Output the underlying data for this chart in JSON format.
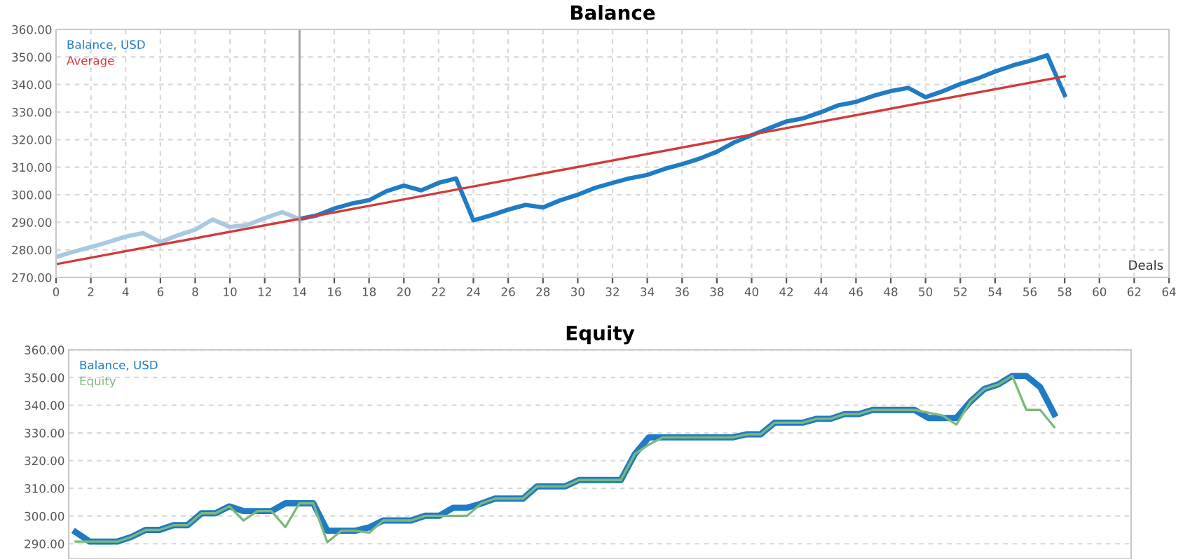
{
  "chart_data": [
    {
      "type": "line",
      "title": "Balance",
      "xlabel": "Deals",
      "xlim": [
        0,
        64
      ],
      "xticks": [
        0,
        2,
        4,
        6,
        8,
        10,
        12,
        14,
        16,
        18,
        20,
        22,
        24,
        26,
        28,
        30,
        32,
        34,
        36,
        38,
        40,
        42,
        44,
        46,
        48,
        50,
        52,
        54,
        56,
        58,
        60,
        62,
        64
      ],
      "ylim": [
        270,
        360
      ],
      "yticks": [
        {
          "value": 270,
          "label": "270.00"
        },
        {
          "value": 280,
          "label": "280.00"
        },
        {
          "value": 290,
          "label": "290.00"
        },
        {
          "value": 300,
          "label": "300.00"
        },
        {
          "value": 310,
          "label": "310.00"
        },
        {
          "value": 320,
          "label": "320.00"
        },
        {
          "value": 330,
          "label": "330.00"
        },
        {
          "value": 340,
          "label": "340.00"
        },
        {
          "value": 350,
          "label": "350.00"
        },
        {
          "value": 360,
          "label": "360.00"
        }
      ],
      "grid": true,
      "legend": "top left",
      "ref_lines": [
        {
          "axis": "x",
          "value": 14,
          "color": "#a0a0a0"
        }
      ],
      "series": [
        {
          "name": "Balance, USD",
          "color": "#1f7bc4",
          "x": [
            14,
            15,
            16,
            17,
            18,
            19,
            20,
            21,
            22,
            23,
            24,
            25,
            26,
            27,
            28,
            29,
            30,
            31,
            32,
            33,
            34,
            35,
            36,
            37,
            38,
            39,
            40,
            41,
            42,
            43,
            44,
            45,
            46,
            47,
            48,
            49,
            50,
            51,
            52,
            53,
            54,
            55,
            56,
            57,
            58
          ],
          "values": [
            291.2,
            292.5,
            295,
            296.8,
            298,
            301.3,
            303.3,
            301.6,
            304.3,
            305.9,
            290.7,
            292.5,
            294.6,
            296.3,
            295.4,
            298,
            300,
            302.5,
            304.3,
            306,
            307.2,
            309.4,
            311.1,
            313.1,
            315.6,
            319,
            321.6,
            324.1,
            326.6,
            327.8,
            330,
            332.5,
            333.7,
            335.9,
            337.6,
            338.8,
            335.4,
            337.6,
            340.2,
            342.2,
            344.7,
            346.9,
            348.6,
            350.6,
            336.2
          ]
        },
        {
          "color": "#a9c9e2",
          "x": [
            0,
            1,
            2,
            3,
            4,
            5,
            6,
            7,
            8,
            9,
            10,
            11,
            12,
            13,
            14
          ],
          "values": [
            277.4,
            279.3,
            281,
            282.8,
            284.8,
            286.1,
            282.8,
            285.3,
            287.3,
            291,
            288.3,
            289,
            291.5,
            293.7,
            291.2
          ]
        },
        {
          "name": "Average",
          "color": "#d23a3a",
          "x": [
            0,
            58
          ],
          "values": [
            274.8,
            343
          ]
        }
      ]
    },
    {
      "type": "line",
      "title": "Equity",
      "tick_labels": "y",
      "categories": [
        null,
        null,
        null,
        null,
        null,
        null,
        null,
        null,
        null,
        null,
        null,
        null,
        null,
        null,
        null,
        null,
        null,
        null,
        null,
        null,
        null,
        null,
        null,
        null,
        null,
        null,
        null,
        null,
        null,
        null,
        null,
        null,
        null,
        null,
        null,
        null,
        null,
        null,
        null,
        null,
        null,
        null,
        null,
        null,
        null,
        null,
        null,
        null,
        null,
        null,
        null,
        null,
        null,
        null,
        null,
        null,
        null,
        null,
        null,
        null,
        null,
        null,
        null,
        null,
        null,
        null,
        null,
        null,
        null,
        null,
        null,
        null,
        null,
        null,
        null,
        null
      ],
      "ylim": [
        284.5,
        360
      ],
      "yticks": [
        {
          "value": 290,
          "label": "290.00"
        },
        {
          "value": 300,
          "label": "300.00"
        },
        {
          "value": 310,
          "label": "310.00"
        },
        {
          "value": 320,
          "label": "320.00"
        },
        {
          "value": 330,
          "label": "330.00"
        },
        {
          "value": 340,
          "label": "340.00"
        },
        {
          "value": 350,
          "label": "350.00"
        },
        {
          "value": 360,
          "label": "360.00"
        }
      ],
      "grid": "y",
      "legend": "top left",
      "series": [
        {
          "name": "Balance, USD",
          "color": "#1f7bc4",
          "values": [
            294.2,
            290.8,
            290.8,
            290.8,
            292.5,
            295,
            295,
            296.7,
            296.7,
            301,
            301,
            303.5,
            301.8,
            301.8,
            301.8,
            304.6,
            304.6,
            304.6,
            294.7,
            294.7,
            294.7,
            295.9,
            298.4,
            298.4,
            298.4,
            300.1,
            300.1,
            303,
            303,
            304.5,
            306.3,
            306.3,
            306.3,
            310.7,
            310.7,
            310.7,
            313,
            313,
            313,
            313,
            322.4,
            328.4,
            328.4,
            328.4,
            328.4,
            328.4,
            328.4,
            328.4,
            329.5,
            329.5,
            333.7,
            333.7,
            333.7,
            335.1,
            335.1,
            336.8,
            336.8,
            338.3,
            338.3,
            338.3,
            338.3,
            335.4,
            335.4,
            335.4,
            341.3,
            345.9,
            347.5,
            350.6,
            350.6,
            346.5,
            336.8,
            null,
            null,
            null,
            null,
            null
          ]
        },
        {
          "name": "Equity",
          "color": "#7db87a",
          "values": [
            290.8,
            290.8,
            290.8,
            290.8,
            292.5,
            295,
            295,
            296.7,
            296.7,
            301,
            301,
            303.5,
            298.4,
            301.8,
            301.8,
            296,
            304.6,
            304.6,
            290.5,
            294.7,
            294.7,
            294,
            298.4,
            298.4,
            298.4,
            300.1,
            300.1,
            300.1,
            300.1,
            304.5,
            306.3,
            306.3,
            306.3,
            310.7,
            310.7,
            310.7,
            313,
            313,
            313,
            313,
            322.4,
            325.8,
            328.4,
            328.4,
            328.4,
            328.4,
            328.4,
            328.4,
            329.5,
            329.5,
            333.7,
            333.7,
            333.7,
            335.1,
            335.1,
            336.8,
            336.8,
            338.3,
            338.3,
            338.3,
            338.3,
            337.3,
            336.3,
            333,
            341.3,
            345.9,
            347.5,
            350.6,
            338.3,
            338.3,
            332.1,
            null,
            null,
            null,
            null,
            null
          ]
        }
      ]
    }
  ]
}
